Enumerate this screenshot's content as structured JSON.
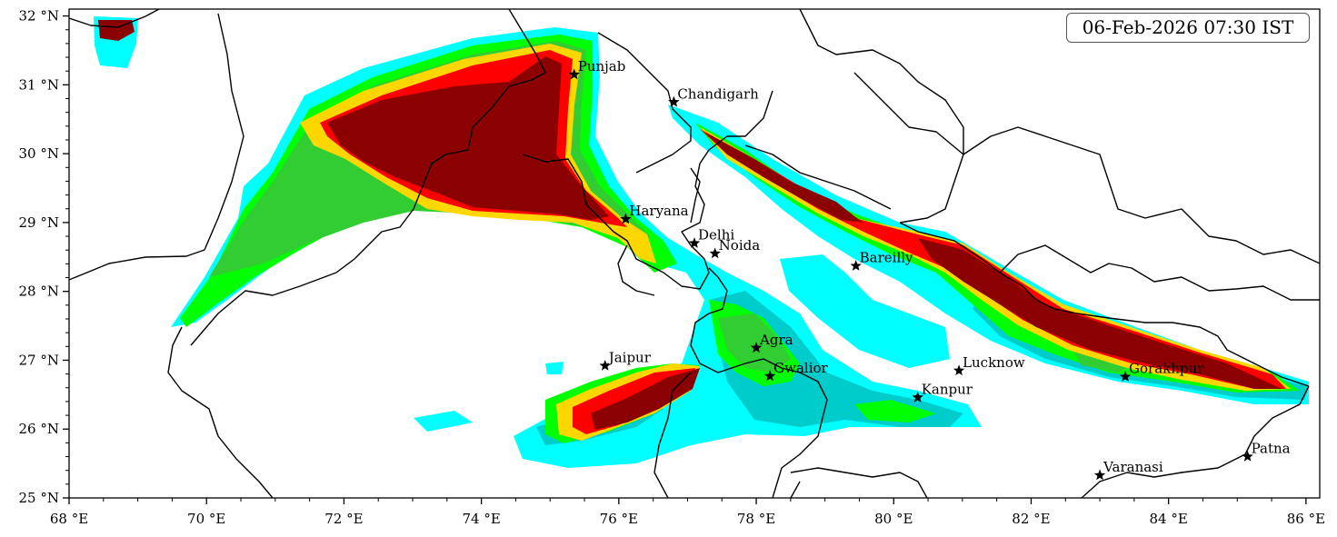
{
  "timestamp": "06-Feb-2026 07:30 IST",
  "axes": {
    "x_ticks": [
      "68 °E",
      "70 °E",
      "72 °E",
      "74 °E",
      "76 °E",
      "78 °E",
      "80 °E",
      "82 °E",
      "84 °E",
      "86 °E"
    ],
    "y_ticks": [
      "25 °N",
      "26 °N",
      "27 °N",
      "28 °N",
      "29 °N",
      "30 °N",
      "31 °N",
      "32 °N"
    ],
    "lon_range": [
      68,
      86.2
    ],
    "lat_range": [
      25,
      32.1
    ]
  },
  "colors": {
    "level1": "#00ffff",
    "level2": "#00cccc",
    "level3": "#00ff00",
    "level4": "#32cd32",
    "level5": "#ffd700",
    "level6": "#ff0000",
    "level7": "#8b0000"
  },
  "cities": [
    {
      "name": "Punjab",
      "lon": 75.35,
      "lat": 31.15
    },
    {
      "name": "Chandigarh",
      "lon": 76.8,
      "lat": 30.75
    },
    {
      "name": "Haryana",
      "lon": 76.1,
      "lat": 29.05
    },
    {
      "name": "Delhi",
      "lon": 77.1,
      "lat": 28.7
    },
    {
      "name": "Noida",
      "lon": 77.4,
      "lat": 28.55
    },
    {
      "name": "Bareilly",
      "lon": 79.45,
      "lat": 28.37
    },
    {
      "name": "Agra",
      "lon": 78.0,
      "lat": 27.18
    },
    {
      "name": "Jaipur",
      "lon": 75.8,
      "lat": 26.92
    },
    {
      "name": "Gwalior",
      "lon": 78.2,
      "lat": 26.77
    },
    {
      "name": "Lucknow",
      "lon": 80.95,
      "lat": 26.85
    },
    {
      "name": "Gorakhpur",
      "lon": 83.37,
      "lat": 26.76
    },
    {
      "name": "Kanpur",
      "lon": 80.35,
      "lat": 26.46
    },
    {
      "name": "Varanasi",
      "lon": 83.0,
      "lat": 25.33
    },
    {
      "name": "Patna",
      "lon": 85.15,
      "lat": 25.6
    }
  ]
}
